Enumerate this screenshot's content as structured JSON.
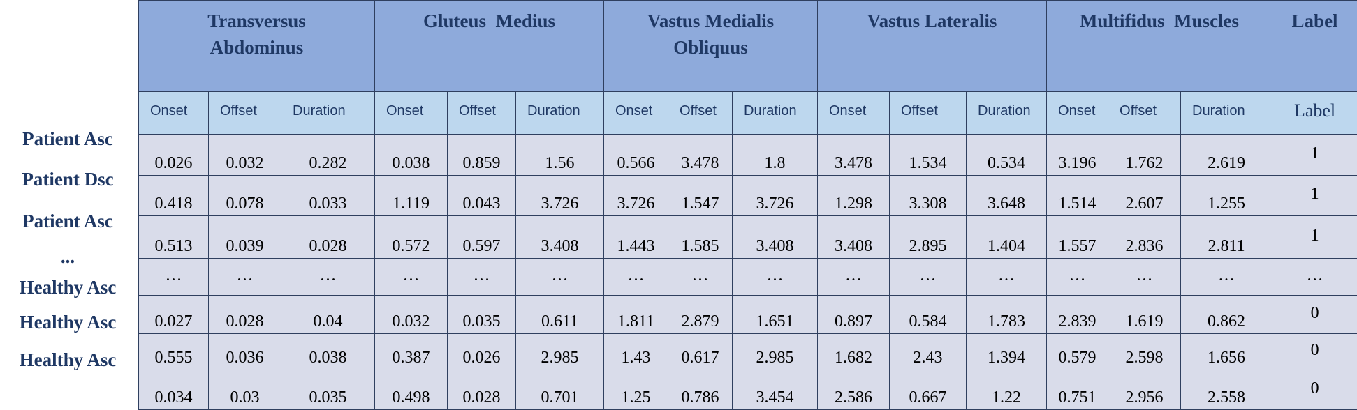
{
  "chart_data": {
    "type": "table",
    "groups": [
      {
        "name": "Transversus Abdominus",
        "line1": "Transversus",
        "line2": "Abdominus"
      },
      {
        "name": "Gluteus Medius",
        "line1": "Gluteus  Medius",
        "line2": ""
      },
      {
        "name": "Vastus Medialis Obliquus",
        "line1": "Vastus Medialis",
        "line2": "Obliquus"
      },
      {
        "name": "Vastus Lateralis",
        "line1": "Vastus Lateralis",
        "line2": ""
      },
      {
        "name": "Multifidus Muscles",
        "line1": "Multifidus  Muscles",
        "line2": ""
      }
    ],
    "label_header": "Label",
    "sub_columns": [
      "Onset",
      "Offset",
      "Duration"
    ],
    "label_sub_header": "Label",
    "rows": [
      {
        "name": "Patient Asc",
        "values": [
          "0.026",
          "0.032",
          "0.282",
          "0.038",
          "0.859",
          "1.56",
          "0.566",
          "3.478",
          "1.8",
          "3.478",
          "1.534",
          "0.534",
          "3.196",
          "1.762",
          "2.619"
        ],
        "label": "1"
      },
      {
        "name": "Patient Dsc",
        "values": [
          "0.418",
          "0.078",
          "0.033",
          "1.119",
          "0.043",
          "3.726",
          "3.726",
          "1.547",
          "3.726",
          "1.298",
          "3.308",
          "3.648",
          "1.514",
          "2.607",
          "1.255"
        ],
        "label": "1"
      },
      {
        "name": "Patient Asc",
        "values": [
          "0.513",
          "0.039",
          "0.028",
          "0.572",
          "0.597",
          "3.408",
          "1.443",
          "1.585",
          "3.408",
          "3.408",
          "2.895",
          "1.404",
          "1.557",
          "2.836",
          "2.811"
        ],
        "label": "1"
      },
      {
        "name": "...",
        "values": [
          "…",
          "…",
          "…",
          "…",
          "…",
          "…",
          "…",
          "…",
          "…",
          "…",
          "…",
          "…",
          "…",
          "…",
          "…"
        ],
        "label": "…"
      },
      {
        "name": "Healthy Asc",
        "values": [
          "0.027",
          "0.028",
          "0.04",
          "0.032",
          "0.035",
          "0.611",
          "1.811",
          "2.879",
          "1.651",
          "0.897",
          "0.584",
          "1.783",
          "2.839",
          "1.619",
          "0.862"
        ],
        "label": "0"
      },
      {
        "name": "Healthy Asc",
        "values": [
          "0.555",
          "0.036",
          "0.038",
          "0.387",
          "0.026",
          "2.985",
          "1.43",
          "0.617",
          "2.985",
          "1.682",
          "2.43",
          "1.394",
          "0.579",
          "2.598",
          "1.656"
        ],
        "label": "0"
      },
      {
        "name": "Healthy Asc",
        "values": [
          "0.034",
          "0.03",
          "0.035",
          "0.498",
          "0.028",
          "0.701",
          "1.25",
          "0.786",
          "3.454",
          "2.586",
          "0.667",
          "1.22",
          "0.751",
          "2.956",
          "2.558"
        ],
        "label": "0"
      }
    ]
  },
  "colors": {
    "group_header_bg": "#8eaadb",
    "sub_header_bg": "#bdd7ee",
    "cell_bg": "#d9dcea",
    "header_text": "#1f3864",
    "border": "#2f3f5f"
  }
}
